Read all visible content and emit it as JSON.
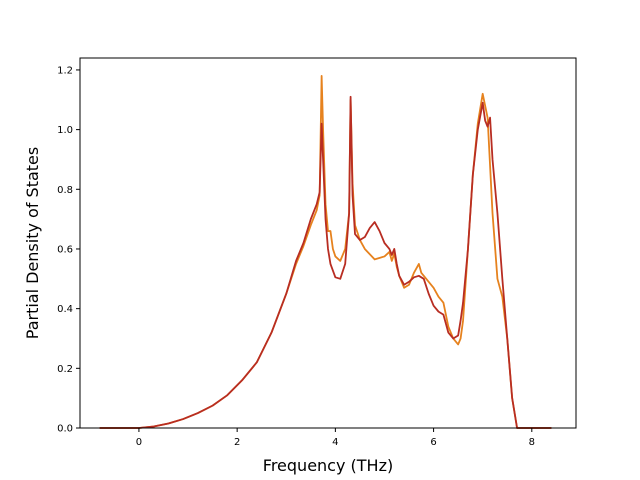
{
  "chart_data": {
    "type": "line",
    "title": "",
    "xlabel": "Frequency (THz)",
    "ylabel": "Partial Density of States",
    "xlim": [
      -1.2,
      8.9
    ],
    "ylim": [
      0.0,
      1.24
    ],
    "xticks": [
      0,
      2,
      4,
      6,
      8
    ],
    "yticks": [
      0.0,
      0.2,
      0.4,
      0.6,
      0.8,
      1.0,
      1.2
    ],
    "xtick_labels": [
      "0",
      "2",
      "4",
      "6",
      "8"
    ],
    "ytick_labels": [
      "0.0",
      "0.2",
      "0.4",
      "0.6",
      "0.8",
      "1.0",
      "1.2"
    ],
    "grid": false,
    "legend": false,
    "series": [
      {
        "color": "#e6821e",
        "x": [
          -0.8,
          0.0,
          0.3,
          0.6,
          0.9,
          1.2,
          1.5,
          1.8,
          2.1,
          2.4,
          2.7,
          3.0,
          3.2,
          3.35,
          3.5,
          3.62,
          3.68,
          3.72,
          3.75,
          3.8,
          3.85,
          3.9,
          3.95,
          4.0,
          4.1,
          4.2,
          4.28,
          4.31,
          4.35,
          4.4,
          4.5,
          4.6,
          4.8,
          5.0,
          5.1,
          5.15,
          5.2,
          5.25,
          5.3,
          5.4,
          5.5,
          5.6,
          5.7,
          5.75,
          5.8,
          5.9,
          6.0,
          6.1,
          6.2,
          6.3,
          6.4,
          6.5,
          6.55,
          6.6,
          6.7,
          6.8,
          6.9,
          7.0,
          7.1,
          7.2,
          7.3,
          7.4,
          7.5,
          7.6,
          7.7,
          7.75,
          8.0,
          8.4
        ],
        "y": [
          0.0,
          0.0,
          0.005,
          0.015,
          0.03,
          0.05,
          0.075,
          0.11,
          0.16,
          0.22,
          0.32,
          0.45,
          0.55,
          0.61,
          0.68,
          0.73,
          0.78,
          1.18,
          1.0,
          0.75,
          0.66,
          0.66,
          0.6,
          0.575,
          0.56,
          0.6,
          0.72,
          1.1,
          0.82,
          0.68,
          0.63,
          0.6,
          0.565,
          0.575,
          0.59,
          0.56,
          0.585,
          0.54,
          0.51,
          0.47,
          0.48,
          0.52,
          0.55,
          0.52,
          0.51,
          0.49,
          0.47,
          0.44,
          0.42,
          0.34,
          0.3,
          0.28,
          0.3,
          0.36,
          0.6,
          0.85,
          1.02,
          1.12,
          1.04,
          0.72,
          0.5,
          0.44,
          0.3,
          0.1,
          0.0,
          0.0,
          0.0,
          0.0
        ]
      },
      {
        "color": "#b82d22",
        "x": [
          -0.8,
          0.0,
          0.3,
          0.6,
          0.9,
          1.2,
          1.5,
          1.8,
          2.1,
          2.4,
          2.7,
          3.0,
          3.2,
          3.35,
          3.5,
          3.62,
          3.68,
          3.72,
          3.75,
          3.8,
          3.85,
          3.9,
          4.0,
          4.1,
          4.2,
          4.28,
          4.31,
          4.35,
          4.4,
          4.5,
          4.6,
          4.7,
          4.8,
          4.9,
          5.0,
          5.1,
          5.15,
          5.2,
          5.25,
          5.3,
          5.4,
          5.5,
          5.6,
          5.7,
          5.8,
          5.9,
          6.0,
          6.1,
          6.2,
          6.3,
          6.4,
          6.5,
          6.55,
          6.6,
          6.7,
          6.8,
          6.9,
          7.0,
          7.05,
          7.1,
          7.15,
          7.2,
          7.3,
          7.4,
          7.5,
          7.6,
          7.7,
          7.75,
          8.0,
          8.4
        ],
        "y": [
          0.0,
          0.0,
          0.005,
          0.015,
          0.03,
          0.05,
          0.075,
          0.11,
          0.16,
          0.22,
          0.32,
          0.45,
          0.56,
          0.62,
          0.7,
          0.75,
          0.79,
          1.02,
          0.9,
          0.7,
          0.6,
          0.55,
          0.505,
          0.5,
          0.55,
          0.72,
          1.11,
          0.78,
          0.65,
          0.63,
          0.64,
          0.67,
          0.69,
          0.66,
          0.62,
          0.6,
          0.58,
          0.6,
          0.55,
          0.51,
          0.48,
          0.49,
          0.505,
          0.51,
          0.5,
          0.45,
          0.41,
          0.39,
          0.38,
          0.32,
          0.3,
          0.31,
          0.36,
          0.42,
          0.6,
          0.85,
          1.0,
          1.09,
          1.03,
          1.01,
          1.04,
          0.9,
          0.72,
          0.5,
          0.3,
          0.1,
          0.0,
          0.0,
          0.0,
          0.0
        ]
      }
    ]
  }
}
